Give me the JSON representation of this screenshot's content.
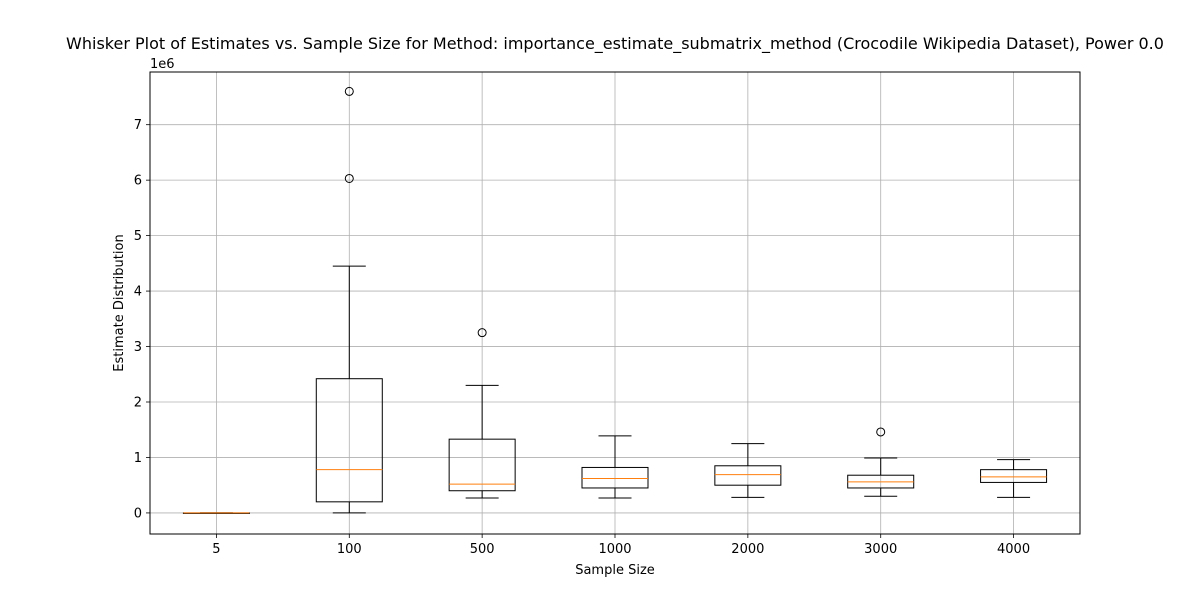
{
  "chart_data": {
    "type": "boxplot",
    "title": "Whisker Plot of Estimates vs. Sample Size for Method: importance_estimate_submatrix_method (Crocodile Wikipedia Dataset), Power 0.0",
    "xlabel": "Sample Size",
    "ylabel": "Estimate Distribution",
    "y_offset_label": "1e6",
    "ylim": [
      -0.38,
      7.95
    ],
    "yticks": [
      0,
      1,
      2,
      3,
      4,
      5,
      6,
      7
    ],
    "grid": true,
    "colors": {
      "box": "#000000",
      "median": "#ff7f0e",
      "grid": "#b0b0b0"
    },
    "categories": [
      "5",
      "100",
      "500",
      "1000",
      "2000",
      "3000",
      "4000"
    ],
    "boxes": [
      {
        "label": "5",
        "whislo": 0.0,
        "q1": 0.0,
        "med": 0.0,
        "q3": 0.0,
        "whishi": 0.0,
        "fliers": []
      },
      {
        "label": "100",
        "whislo": 0.0,
        "q1": 0.2,
        "med": 0.78,
        "q3": 2.42,
        "whishi": 4.45,
        "fliers": [
          6.03,
          7.6
        ]
      },
      {
        "label": "500",
        "whislo": 0.27,
        "q1": 0.4,
        "med": 0.52,
        "q3": 1.33,
        "whishi": 2.3,
        "fliers": [
          3.25
        ]
      },
      {
        "label": "1000",
        "whislo": 0.27,
        "q1": 0.45,
        "med": 0.62,
        "q3": 0.82,
        "whishi": 1.39,
        "fliers": []
      },
      {
        "label": "2000",
        "whislo": 0.28,
        "q1": 0.5,
        "med": 0.69,
        "q3": 0.85,
        "whishi": 1.25,
        "fliers": []
      },
      {
        "label": "3000",
        "whislo": 0.3,
        "q1": 0.45,
        "med": 0.56,
        "q3": 0.68,
        "whishi": 0.99,
        "fliers": [
          1.46
        ]
      },
      {
        "label": "4000",
        "whislo": 0.28,
        "q1": 0.55,
        "med": 0.65,
        "q3": 0.78,
        "whishi": 0.96,
        "fliers": []
      }
    ]
  }
}
